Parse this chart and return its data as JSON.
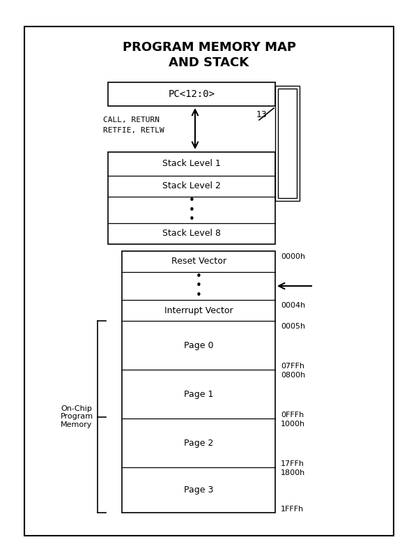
{
  "title_line1": "PROGRAM MEMORY MAP",
  "title_line2": "AND STACK",
  "bg_color": "#ffffff",
  "border_color": "#000000",
  "call_text_line1": "CALL, RETURN",
  "call_text_line2": "RETFIE, RETLW",
  "arrow_13_label": "13",
  "on_chip_label": "On-Chip\nProgram\nMemory",
  "pc_label": "PC<12:0>",
  "stack_labels": [
    "Stack Level 1",
    "Stack Level 2",
    "•\n•\n•",
    "Stack Level 8"
  ],
  "mem_labels": [
    "Reset Vector",
    "•\n•\n•",
    "Interrupt Vector",
    "Page 0",
    "Page 1",
    "Page 2",
    "Page 3"
  ],
  "addr_top": [
    "0000h",
    null,
    "0004h",
    "0005h",
    "0800h",
    "1000h",
    "1800h"
  ],
  "addr_bot": [
    null,
    null,
    null,
    "07FFh",
    "0FFFh",
    "17FFh",
    "1FFFh"
  ]
}
